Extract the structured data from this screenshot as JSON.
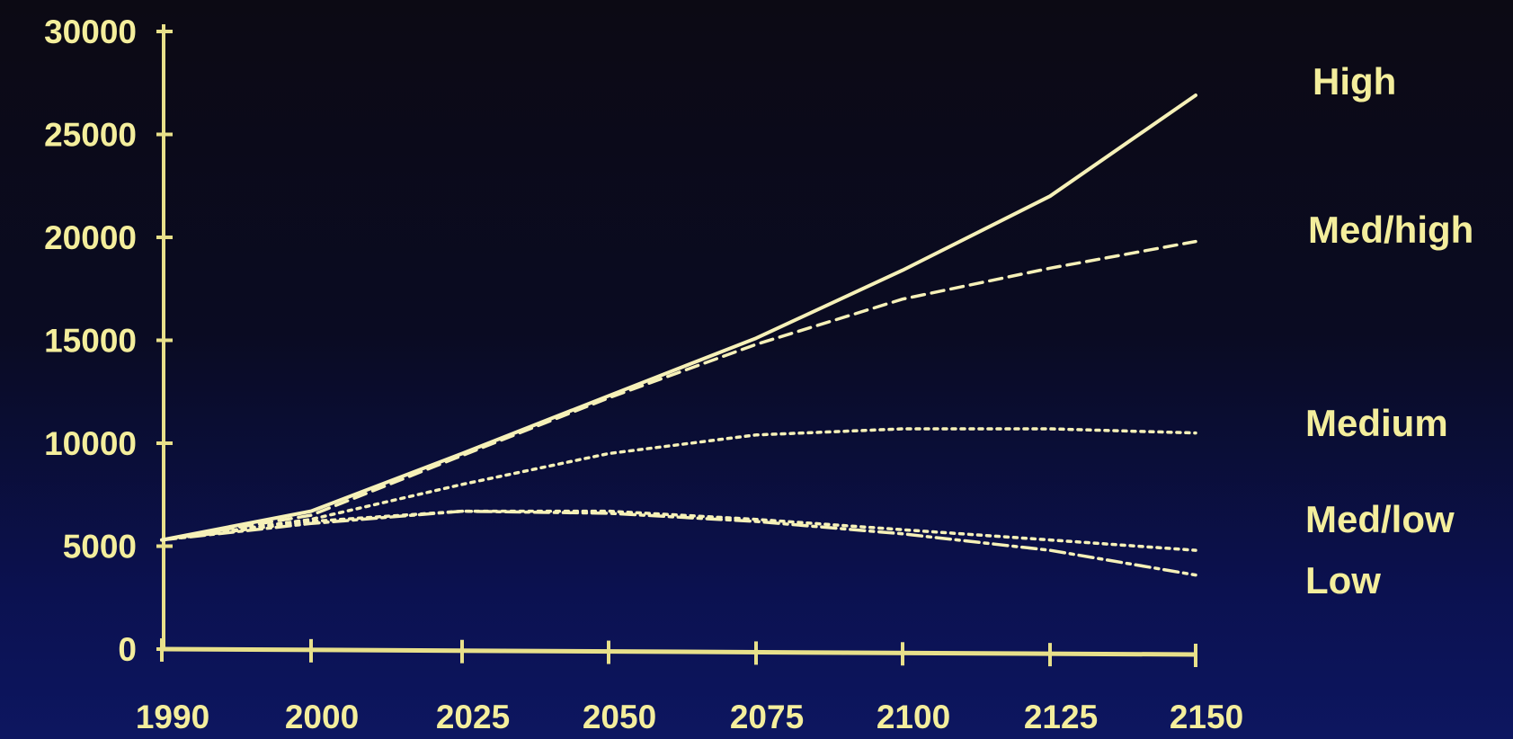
{
  "colors": {
    "axis": "#e8e08a",
    "text": "#f4ee9c",
    "line": "#f6f1b8"
  },
  "chart_data": {
    "type": "line",
    "title": "",
    "xlabel": "",
    "ylabel": "",
    "x": [
      "1990",
      "2000",
      "2025",
      "2050",
      "2075",
      "2100",
      "2125",
      "2150"
    ],
    "ylim": [
      0,
      30000
    ],
    "yticks": [
      "0",
      "5000",
      "10000",
      "15000",
      "20000",
      "25000",
      "30000"
    ],
    "grid": false,
    "legend": "right (series labels beside line ends)",
    "series": [
      {
        "name": "High",
        "style": "solid",
        "values": [
          5300,
          6700,
          9500,
          12300,
          15100,
          18400,
          22000,
          26900
        ]
      },
      {
        "name": "Med/high",
        "style": "dashed",
        "values": [
          5300,
          6500,
          9400,
          12200,
          14800,
          17000,
          18500,
          19800
        ]
      },
      {
        "name": "Medium",
        "style": "dotted",
        "values": [
          5300,
          6300,
          8000,
          9500,
          10400,
          10700,
          10700,
          10500
        ]
      },
      {
        "name": "Med/low",
        "style": "dotted",
        "values": [
          5300,
          6200,
          6700,
          6700,
          6300,
          5800,
          5300,
          4800
        ]
      },
      {
        "name": "Low",
        "style": "dashdot",
        "values": [
          5300,
          6100,
          6700,
          6600,
          6200,
          5600,
          4800,
          3600
        ]
      }
    ]
  }
}
